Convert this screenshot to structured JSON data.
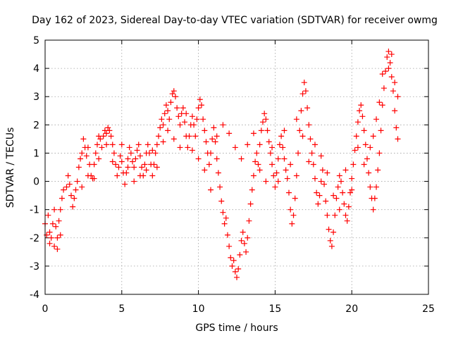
{
  "chart_data": {
    "type": "scatter",
    "title": "Day 162 of 2023, Sidereal Day-to-day VTEC variation (SDTVAR) for receiver owmg",
    "xlabel": "GPS time / hours",
    "ylabel": "SDTVAR / TECUs",
    "xlim": [
      0,
      25
    ],
    "ylim": [
      -4,
      5
    ],
    "x_ticks": [
      "0",
      "5",
      "10",
      "15",
      "20",
      "25"
    ],
    "y_ticks": [
      "-4",
      "-3",
      "-2",
      "-1",
      "0",
      "1",
      "2",
      "3",
      "4",
      "5"
    ],
    "grid": true,
    "marker": "+",
    "series_color": "#ff0000",
    "series": [
      {
        "name": "SDTVAR",
        "points": [
          [
            0.0,
            -1.5
          ],
          [
            0.1,
            -1.9
          ],
          [
            0.2,
            -1.2
          ],
          [
            0.3,
            -1.8
          ],
          [
            0.4,
            -2.0
          ],
          [
            0.5,
            -1.5
          ],
          [
            0.6,
            -2.3
          ],
          [
            0.7,
            -1.6
          ],
          [
            0.8,
            -2.0
          ],
          [
            0.9,
            -1.4
          ],
          [
            1.0,
            -1.0
          ],
          [
            1.1,
            -0.6
          ],
          [
            1.2,
            -0.3
          ],
          [
            1.4,
            -0.2
          ],
          [
            1.5,
            0.2
          ],
          [
            1.6,
            -0.1
          ],
          [
            1.7,
            -0.5
          ],
          [
            1.8,
            -0.9
          ],
          [
            1.9,
            -0.6
          ],
          [
            2.0,
            -0.3
          ],
          [
            2.1,
            0.0
          ],
          [
            2.2,
            0.5
          ],
          [
            2.3,
            0.8
          ],
          [
            2.4,
            1.0
          ],
          [
            2.5,
            1.5
          ],
          [
            2.6,
            1.2
          ],
          [
            2.7,
            0.9
          ],
          [
            2.8,
            1.2
          ],
          [
            2.9,
            0.6
          ],
          [
            3.0,
            0.2
          ],
          [
            3.1,
            0.1
          ],
          [
            3.2,
            0.6
          ],
          [
            3.3,
            1.0
          ],
          [
            3.4,
            1.3
          ],
          [
            3.5,
            1.6
          ],
          [
            3.6,
            1.5
          ],
          [
            3.7,
            1.2
          ],
          [
            3.8,
            1.6
          ],
          [
            3.9,
            1.8
          ],
          [
            4.0,
            1.7
          ],
          [
            4.1,
            1.9
          ],
          [
            4.2,
            1.8
          ],
          [
            4.3,
            1.6
          ],
          [
            4.4,
            1.3
          ],
          [
            4.5,
            1.0
          ],
          [
            4.6,
            0.6
          ],
          [
            4.7,
            0.2
          ],
          [
            4.8,
            0.5
          ],
          [
            4.9,
            0.9
          ],
          [
            5.0,
            0.7
          ],
          [
            5.1,
            0.3
          ],
          [
            5.2,
            -0.1
          ],
          [
            5.3,
            0.3
          ],
          [
            5.4,
            0.8
          ],
          [
            5.5,
            1.2
          ],
          [
            5.6,
            1.0
          ],
          [
            5.7,
            0.7
          ],
          [
            5.8,
            0.5
          ],
          [
            5.9,
            0.8
          ],
          [
            6.0,
            1.1
          ],
          [
            6.1,
            1.3
          ],
          [
            6.2,
            0.9
          ],
          [
            6.3,
            0.5
          ],
          [
            6.4,
            0.2
          ],
          [
            6.5,
            0.6
          ],
          [
            6.6,
            1.0
          ],
          [
            6.7,
            1.3
          ],
          [
            6.8,
            1.0
          ],
          [
            6.9,
            0.6
          ],
          [
            7.0,
            0.2
          ],
          [
            7.1,
            0.6
          ],
          [
            7.2,
            1.0
          ],
          [
            7.3,
            1.3
          ],
          [
            7.4,
            1.6
          ],
          [
            7.5,
            1.9
          ],
          [
            7.6,
            2.2
          ],
          [
            7.7,
            2.0
          ],
          [
            7.8,
            2.4
          ],
          [
            7.9,
            2.7
          ],
          [
            8.0,
            2.5
          ],
          [
            8.1,
            2.2
          ],
          [
            8.2,
            2.8
          ],
          [
            8.3,
            3.1
          ],
          [
            8.4,
            3.2
          ],
          [
            8.5,
            3.0
          ],
          [
            8.6,
            2.6
          ],
          [
            8.7,
            2.3
          ],
          [
            8.8,
            2.0
          ],
          [
            8.9,
            2.4
          ],
          [
            9.0,
            2.6
          ],
          [
            9.1,
            2.1
          ],
          [
            9.2,
            1.6
          ],
          [
            9.3,
            1.2
          ],
          [
            9.4,
            1.6
          ],
          [
            9.5,
            2.0
          ],
          [
            9.6,
            2.3
          ],
          [
            9.7,
            2.0
          ],
          [
            9.8,
            1.6
          ],
          [
            9.9,
            2.2
          ],
          [
            10.0,
            2.6
          ],
          [
            10.1,
            2.9
          ],
          [
            10.2,
            2.7
          ],
          [
            10.3,
            2.2
          ],
          [
            10.4,
            1.8
          ],
          [
            10.5,
            1.4
          ],
          [
            10.6,
            1.0
          ],
          [
            10.7,
            0.6
          ],
          [
            10.8,
            1.0
          ],
          [
            10.9,
            1.5
          ],
          [
            11.0,
            1.9
          ],
          [
            11.1,
            1.4
          ],
          [
            11.2,
            0.8
          ],
          [
            11.3,
            0.3
          ],
          [
            11.4,
            -0.2
          ],
          [
            11.5,
            -0.7
          ],
          [
            11.6,
            -1.1
          ],
          [
            11.7,
            -1.5
          ],
          [
            11.8,
            -1.3
          ],
          [
            11.9,
            -1.9
          ],
          [
            12.0,
            -2.3
          ],
          [
            12.1,
            -2.7
          ],
          [
            12.2,
            -3.0
          ],
          [
            12.3,
            -2.8
          ],
          [
            12.4,
            -3.2
          ],
          [
            12.5,
            -3.4
          ],
          [
            12.6,
            -3.1
          ],
          [
            12.7,
            -2.6
          ],
          [
            12.8,
            -2.1
          ],
          [
            12.9,
            -1.8
          ],
          [
            13.0,
            -2.2
          ],
          [
            13.1,
            -2.5
          ],
          [
            13.2,
            -2.0
          ],
          [
            13.3,
            -1.4
          ],
          [
            13.4,
            -0.8
          ],
          [
            13.5,
            -0.3
          ],
          [
            13.6,
            0.2
          ],
          [
            13.7,
            0.7
          ],
          [
            13.8,
            1.0
          ],
          [
            13.9,
            0.6
          ],
          [
            14.0,
            1.3
          ],
          [
            14.1,
            1.8
          ],
          [
            14.2,
            2.1
          ],
          [
            14.3,
            2.4
          ],
          [
            14.4,
            2.2
          ],
          [
            14.5,
            1.8
          ],
          [
            14.6,
            1.4
          ],
          [
            14.7,
            1.0
          ],
          [
            14.8,
            0.6
          ],
          [
            14.9,
            0.2
          ],
          [
            15.0,
            -0.2
          ],
          [
            15.1,
            0.3
          ],
          [
            15.2,
            0.8
          ],
          [
            15.3,
            1.3
          ],
          [
            15.4,
            1.6
          ],
          [
            15.5,
            1.2
          ],
          [
            15.6,
            0.8
          ],
          [
            15.7,
            0.4
          ],
          [
            15.8,
            0.1
          ],
          [
            15.9,
            -0.4
          ],
          [
            16.0,
            -1.0
          ],
          [
            16.1,
            -1.5
          ],
          [
            16.2,
            -1.2
          ],
          [
            16.3,
            -0.6
          ],
          [
            16.4,
            0.2
          ],
          [
            16.5,
            1.0
          ],
          [
            16.6,
            1.8
          ],
          [
            16.7,
            2.5
          ],
          [
            16.8,
            3.1
          ],
          [
            16.9,
            3.5
          ],
          [
            17.0,
            3.2
          ],
          [
            17.1,
            2.6
          ],
          [
            17.2,
            2.0
          ],
          [
            17.3,
            1.5
          ],
          [
            17.4,
            1.0
          ],
          [
            17.5,
            0.6
          ],
          [
            17.6,
            0.1
          ],
          [
            17.7,
            -0.4
          ],
          [
            17.8,
            -0.8
          ],
          [
            17.9,
            -0.5
          ],
          [
            18.0,
            0.0
          ],
          [
            18.1,
            0.4
          ],
          [
            18.2,
            -0.1
          ],
          [
            18.3,
            -0.7
          ],
          [
            18.4,
            -1.2
          ],
          [
            18.5,
            -1.7
          ],
          [
            18.6,
            -2.1
          ],
          [
            18.7,
            -2.3
          ],
          [
            18.8,
            -1.8
          ],
          [
            18.9,
            -1.2
          ],
          [
            19.0,
            -0.6
          ],
          [
            19.1,
            -0.2
          ],
          [
            19.2,
            0.2
          ],
          [
            19.3,
            0.0
          ],
          [
            19.4,
            -0.4
          ],
          [
            19.5,
            -0.8
          ],
          [
            19.6,
            -1.2
          ],
          [
            19.7,
            -1.4
          ],
          [
            19.8,
            -0.9
          ],
          [
            19.9,
            -0.4
          ],
          [
            20.0,
            0.1
          ],
          [
            20.1,
            0.6
          ],
          [
            20.2,
            1.1
          ],
          [
            20.3,
            1.6
          ],
          [
            20.4,
            2.1
          ],
          [
            20.5,
            2.5
          ],
          [
            20.6,
            2.7
          ],
          [
            20.7,
            2.3
          ],
          [
            20.8,
            1.8
          ],
          [
            20.9,
            1.3
          ],
          [
            21.0,
            0.8
          ],
          [
            21.1,
            0.3
          ],
          [
            21.2,
            -0.2
          ],
          [
            21.3,
            -0.6
          ],
          [
            21.4,
            -1.0
          ],
          [
            21.5,
            -0.6
          ],
          [
            21.6,
            -0.2
          ],
          [
            21.7,
            0.4
          ],
          [
            21.8,
            1.0
          ],
          [
            21.9,
            1.8
          ],
          [
            22.0,
            2.7
          ],
          [
            22.1,
            3.3
          ],
          [
            22.2,
            3.9
          ],
          [
            22.3,
            4.4
          ],
          [
            22.4,
            4.6
          ],
          [
            22.5,
            4.2
          ],
          [
            22.6,
            3.7
          ],
          [
            22.7,
            3.2
          ],
          [
            22.8,
            2.5
          ],
          [
            22.9,
            1.9
          ],
          [
            23.0,
            1.5
          ],
          [
            0.3,
            -2.2
          ],
          [
            0.6,
            -1.0
          ],
          [
            0.8,
            -2.4
          ],
          [
            1.0,
            -1.9
          ],
          [
            2.4,
            -0.2
          ],
          [
            2.8,
            0.2
          ],
          [
            3.2,
            0.1
          ],
          [
            3.5,
            0.8
          ],
          [
            4.0,
            1.3
          ],
          [
            4.4,
            0.7
          ],
          [
            5.0,
            1.3
          ],
          [
            5.4,
            0.5
          ],
          [
            5.8,
            0.0
          ],
          [
            6.2,
            0.2
          ],
          [
            6.6,
            0.4
          ],
          [
            7.0,
            1.1
          ],
          [
            7.3,
            0.5
          ],
          [
            7.7,
            1.4
          ],
          [
            8.0,
            1.8
          ],
          [
            8.4,
            1.5
          ],
          [
            8.8,
            1.2
          ],
          [
            9.2,
            2.4
          ],
          [
            9.6,
            1.1
          ],
          [
            10.0,
            0.8
          ],
          [
            10.4,
            0.4
          ],
          [
            10.8,
            -0.3
          ],
          [
            11.2,
            1.6
          ],
          [
            11.6,
            2.0
          ],
          [
            12.0,
            1.7
          ],
          [
            12.4,
            1.2
          ],
          [
            12.8,
            0.8
          ],
          [
            13.2,
            1.3
          ],
          [
            13.6,
            1.7
          ],
          [
            14.0,
            0.4
          ],
          [
            14.4,
            0.0
          ],
          [
            14.8,
            1.2
          ],
          [
            15.2,
            0.0
          ],
          [
            15.6,
            1.8
          ],
          [
            16.0,
            0.6
          ],
          [
            16.4,
            2.2
          ],
          [
            16.8,
            1.6
          ],
          [
            17.2,
            0.7
          ],
          [
            17.6,
            1.3
          ],
          [
            18.0,
            0.9
          ],
          [
            18.4,
            0.3
          ],
          [
            18.8,
            -0.5
          ],
          [
            19.2,
            -1.0
          ],
          [
            19.6,
            0.4
          ],
          [
            20.0,
            -0.3
          ],
          [
            20.4,
            1.2
          ],
          [
            20.8,
            0.6
          ],
          [
            21.2,
            1.2
          ],
          [
            21.6,
            2.2
          ],
          [
            22.0,
            3.8
          ],
          [
            22.4,
            4.0
          ],
          [
            22.8,
            3.5
          ],
          [
            23.0,
            3.0
          ],
          [
            22.6,
            4.5
          ],
          [
            21.8,
            2.8
          ],
          [
            21.4,
            1.6
          ]
        ]
      }
    ]
  }
}
